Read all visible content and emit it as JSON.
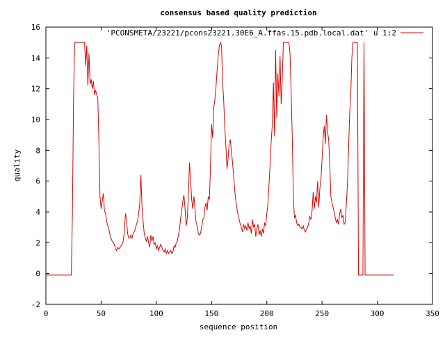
{
  "chart_data": {
    "type": "line",
    "title": "consensus based quality prediction",
    "xlabel": "sequence position",
    "ylabel": "quality",
    "xlim": [
      0,
      350
    ],
    "ylim": [
      -2,
      16
    ],
    "xticks": [
      "0",
      "50",
      "100",
      "150",
      "200",
      "250",
      "300",
      "350"
    ],
    "yticks": [
      "-2",
      "0",
      "2",
      "4",
      "6",
      "8",
      "10",
      "12",
      "14",
      "16"
    ],
    "grid": false,
    "legend_position": "top-right",
    "series": [
      {
        "name": "'PCONSMETA/23221/pcons23221.30E6_A.ffas.15.pdb.local.dat' u 1:2",
        "color": "#dd0000",
        "points": [
          [
            0,
            -0.1
          ],
          [
            23,
            -0.1
          ],
          [
            24,
            3.8
          ],
          [
            25,
            11
          ],
          [
            26,
            15
          ],
          [
            27,
            15
          ],
          [
            34,
            15
          ],
          [
            35,
            15
          ],
          [
            36,
            13.5
          ],
          [
            37,
            14.8
          ],
          [
            38,
            12.2
          ],
          [
            39,
            14.3
          ],
          [
            40,
            12.3
          ],
          [
            41,
            12.6
          ],
          [
            42,
            12
          ],
          [
            43,
            12.5
          ],
          [
            44,
            11.6
          ],
          [
            45,
            11.9
          ],
          [
            46,
            11.6
          ],
          [
            47,
            11.4
          ],
          [
            48,
            8.5
          ],
          [
            49,
            5
          ],
          [
            50,
            4.2
          ],
          [
            51,
            4.7
          ],
          [
            52,
            5.2
          ],
          [
            53,
            4.1
          ],
          [
            54,
            3.9
          ],
          [
            55,
            3.4
          ],
          [
            56,
            3.1
          ],
          [
            57,
            2.9
          ],
          [
            58,
            2.5
          ],
          [
            59,
            2.3
          ],
          [
            60,
            2.1
          ],
          [
            61,
            2
          ],
          [
            62,
            1.9
          ],
          [
            63,
            1.6
          ],
          [
            64,
            1.5
          ],
          [
            65,
            1.7
          ],
          [
            66,
            1.6
          ],
          [
            67,
            1.7
          ],
          [
            68,
            1.8
          ],
          [
            69,
            1.9
          ],
          [
            70,
            2.1
          ],
          [
            71,
            2.7
          ],
          [
            72,
            3.9
          ],
          [
            73,
            3.5
          ],
          [
            74,
            2.6
          ],
          [
            75,
            2.3
          ],
          [
            76,
            2.3
          ],
          [
            77,
            2.5
          ],
          [
            78,
            2.3
          ],
          [
            79,
            2.6
          ],
          [
            80,
            2.7
          ],
          [
            81,
            2.9
          ],
          [
            82,
            3.2
          ],
          [
            83,
            3.4
          ],
          [
            84,
            3.9
          ],
          [
            85,
            4.6
          ],
          [
            86,
            6.4
          ],
          [
            87,
            4.4
          ],
          [
            88,
            3.4
          ],
          [
            89,
            2.6
          ],
          [
            90,
            2.3
          ],
          [
            91,
            2.1
          ],
          [
            92,
            2.4
          ],
          [
            93,
            2.0
          ],
          [
            94,
            1.7
          ],
          [
            95,
            2.5
          ],
          [
            96,
            2.1
          ],
          [
            97,
            2.4
          ],
          [
            98,
            1.9
          ],
          [
            99,
            2.0
          ],
          [
            100,
            1.6
          ],
          [
            101,
            1.8
          ],
          [
            102,
            1.5
          ],
          [
            103,
            1.7
          ],
          [
            104,
            1.9
          ],
          [
            105,
            1.7
          ],
          [
            106,
            1.5
          ],
          [
            107,
            1.4
          ],
          [
            108,
            1.6
          ],
          [
            109,
            1.3
          ],
          [
            110,
            1.5
          ],
          [
            111,
            1.3
          ],
          [
            112,
            1.4
          ],
          [
            113,
            1.5
          ],
          [
            114,
            1.3
          ],
          [
            115,
            1.4
          ],
          [
            116,
            1.8
          ],
          [
            117,
            1.7
          ],
          [
            118,
            2.0
          ],
          [
            119,
            2.1
          ],
          [
            120,
            2.5
          ],
          [
            121,
            2.9
          ],
          [
            122,
            3.6
          ],
          [
            123,
            4.1
          ],
          [
            124,
            4.7
          ],
          [
            125,
            5.1
          ],
          [
            126,
            4.2
          ],
          [
            127,
            3.1
          ],
          [
            128,
            3.6
          ],
          [
            129,
            5.1
          ],
          [
            130,
            7.2
          ],
          [
            131,
            6.1
          ],
          [
            132,
            4.8
          ],
          [
            133,
            4.2
          ],
          [
            134,
            5.0
          ],
          [
            135,
            4.2
          ],
          [
            136,
            3.3
          ],
          [
            137,
            3.1
          ],
          [
            138,
            2.6
          ],
          [
            139,
            2.5
          ],
          [
            140,
            2.6
          ],
          [
            141,
            3.0
          ],
          [
            142,
            3.5
          ],
          [
            143,
            3.6
          ],
          [
            144,
            4.3
          ],
          [
            145,
            4.6
          ],
          [
            146,
            4.1
          ],
          [
            147,
            5.0
          ],
          [
            148,
            4.8
          ],
          [
            149,
            6.9
          ],
          [
            150,
            9.7
          ],
          [
            151,
            8.8
          ],
          [
            152,
            10.8
          ],
          [
            153,
            11.3
          ],
          [
            154,
            12.1
          ],
          [
            155,
            13.2
          ],
          [
            156,
            14.1
          ],
          [
            157,
            14.8
          ],
          [
            158,
            15.0
          ],
          [
            159,
            14.8
          ],
          [
            160,
            12.4
          ],
          [
            161,
            11.2
          ],
          [
            162,
            9.4
          ],
          [
            163,
            8.2
          ],
          [
            164,
            6.8
          ],
          [
            165,
            7.5
          ],
          [
            166,
            8.5
          ],
          [
            167,
            8.7
          ],
          [
            168,
            7.9
          ],
          [
            169,
            7.2
          ],
          [
            170,
            6.3
          ],
          [
            171,
            5.4
          ],
          [
            172,
            4.7
          ],
          [
            173,
            4.2
          ],
          [
            174,
            3.8
          ],
          [
            175,
            3.5
          ],
          [
            176,
            3.2
          ],
          [
            177,
            3.0
          ],
          [
            178,
            2.7
          ],
          [
            179,
            3.2
          ],
          [
            180,
            2.9
          ],
          [
            181,
            3.1
          ],
          [
            182,
            2.8
          ],
          [
            183,
            3.3
          ],
          [
            184,
            2.9
          ],
          [
            185,
            3.1
          ],
          [
            186,
            2.6
          ],
          [
            187,
            3.5
          ],
          [
            188,
            3.0
          ],
          [
            189,
            3.2
          ],
          [
            190,
            2.4
          ],
          [
            191,
            2.9
          ],
          [
            192,
            3.2
          ],
          [
            193,
            2.5
          ],
          [
            194,
            2.8
          ],
          [
            195,
            2.4
          ],
          [
            196,
            2.9
          ],
          [
            197,
            2.6
          ],
          [
            198,
            3.3
          ],
          [
            199,
            3.1
          ],
          [
            200,
            3.9
          ],
          [
            201,
            4.5
          ],
          [
            202,
            5.8
          ],
          [
            203,
            7.1
          ],
          [
            204,
            8.6
          ],
          [
            205,
            9.7
          ],
          [
            206,
            12.4
          ],
          [
            207,
            8.9
          ],
          [
            208,
            14.5
          ],
          [
            209,
            10.1
          ],
          [
            210,
            13.0
          ],
          [
            211,
            11.5
          ],
          [
            212,
            14.1
          ],
          [
            213,
            11.0
          ],
          [
            214,
            12.6
          ],
          [
            215,
            15.0
          ],
          [
            216,
            15.0
          ],
          [
            220,
            15.0
          ],
          [
            221,
            14.3
          ],
          [
            222,
            11.8
          ],
          [
            223,
            9.0
          ],
          [
            224,
            5.1
          ],
          [
            225,
            3.6
          ],
          [
            226,
            3.8
          ],
          [
            227,
            3.3
          ],
          [
            228,
            3.1
          ],
          [
            229,
            3.2
          ],
          [
            230,
            3.0
          ],
          [
            231,
            3.0
          ],
          [
            232,
            2.9
          ],
          [
            233,
            3.1
          ],
          [
            234,
            2.8
          ],
          [
            235,
            2.7
          ],
          [
            236,
            2.9
          ],
          [
            237,
            3.0
          ],
          [
            238,
            3.3
          ],
          [
            239,
            3.7
          ],
          [
            240,
            3.5
          ],
          [
            241,
            4.1
          ],
          [
            242,
            5.3
          ],
          [
            243,
            4.2
          ],
          [
            244,
            5.0
          ],
          [
            245,
            4.6
          ],
          [
            246,
            6.0
          ],
          [
            247,
            4.3
          ],
          [
            248,
            5.5
          ],
          [
            249,
            6.1
          ],
          [
            250,
            7.4
          ],
          [
            251,
            8.8
          ],
          [
            252,
            9.6
          ],
          [
            253,
            8.4
          ],
          [
            254,
            10.3
          ],
          [
            255,
            9.2
          ],
          [
            256,
            8.7
          ],
          [
            257,
            7.1
          ],
          [
            258,
            5.0
          ],
          [
            259,
            4.6
          ],
          [
            260,
            4.3
          ],
          [
            261,
            4.0
          ],
          [
            262,
            3.6
          ],
          [
            263,
            3.3
          ],
          [
            264,
            3.5
          ],
          [
            265,
            3.2
          ],
          [
            266,
            3.9
          ],
          [
            267,
            4.2
          ],
          [
            268,
            3.6
          ],
          [
            269,
            3.8
          ],
          [
            270,
            3.2
          ],
          [
            271,
            3.3
          ],
          [
            272,
            4.5
          ],
          [
            273,
            5.8
          ],
          [
            274,
            8.0
          ],
          [
            275,
            10.4
          ],
          [
            276,
            11.6
          ],
          [
            277,
            14.0
          ],
          [
            278,
            15.0
          ],
          [
            282,
            15.0
          ],
          [
            283,
            -0.1
          ],
          [
            287,
            -0.1
          ],
          [
            288,
            15.0
          ],
          [
            289,
            -0.1
          ],
          [
            315,
            -0.1
          ]
        ]
      }
    ]
  }
}
